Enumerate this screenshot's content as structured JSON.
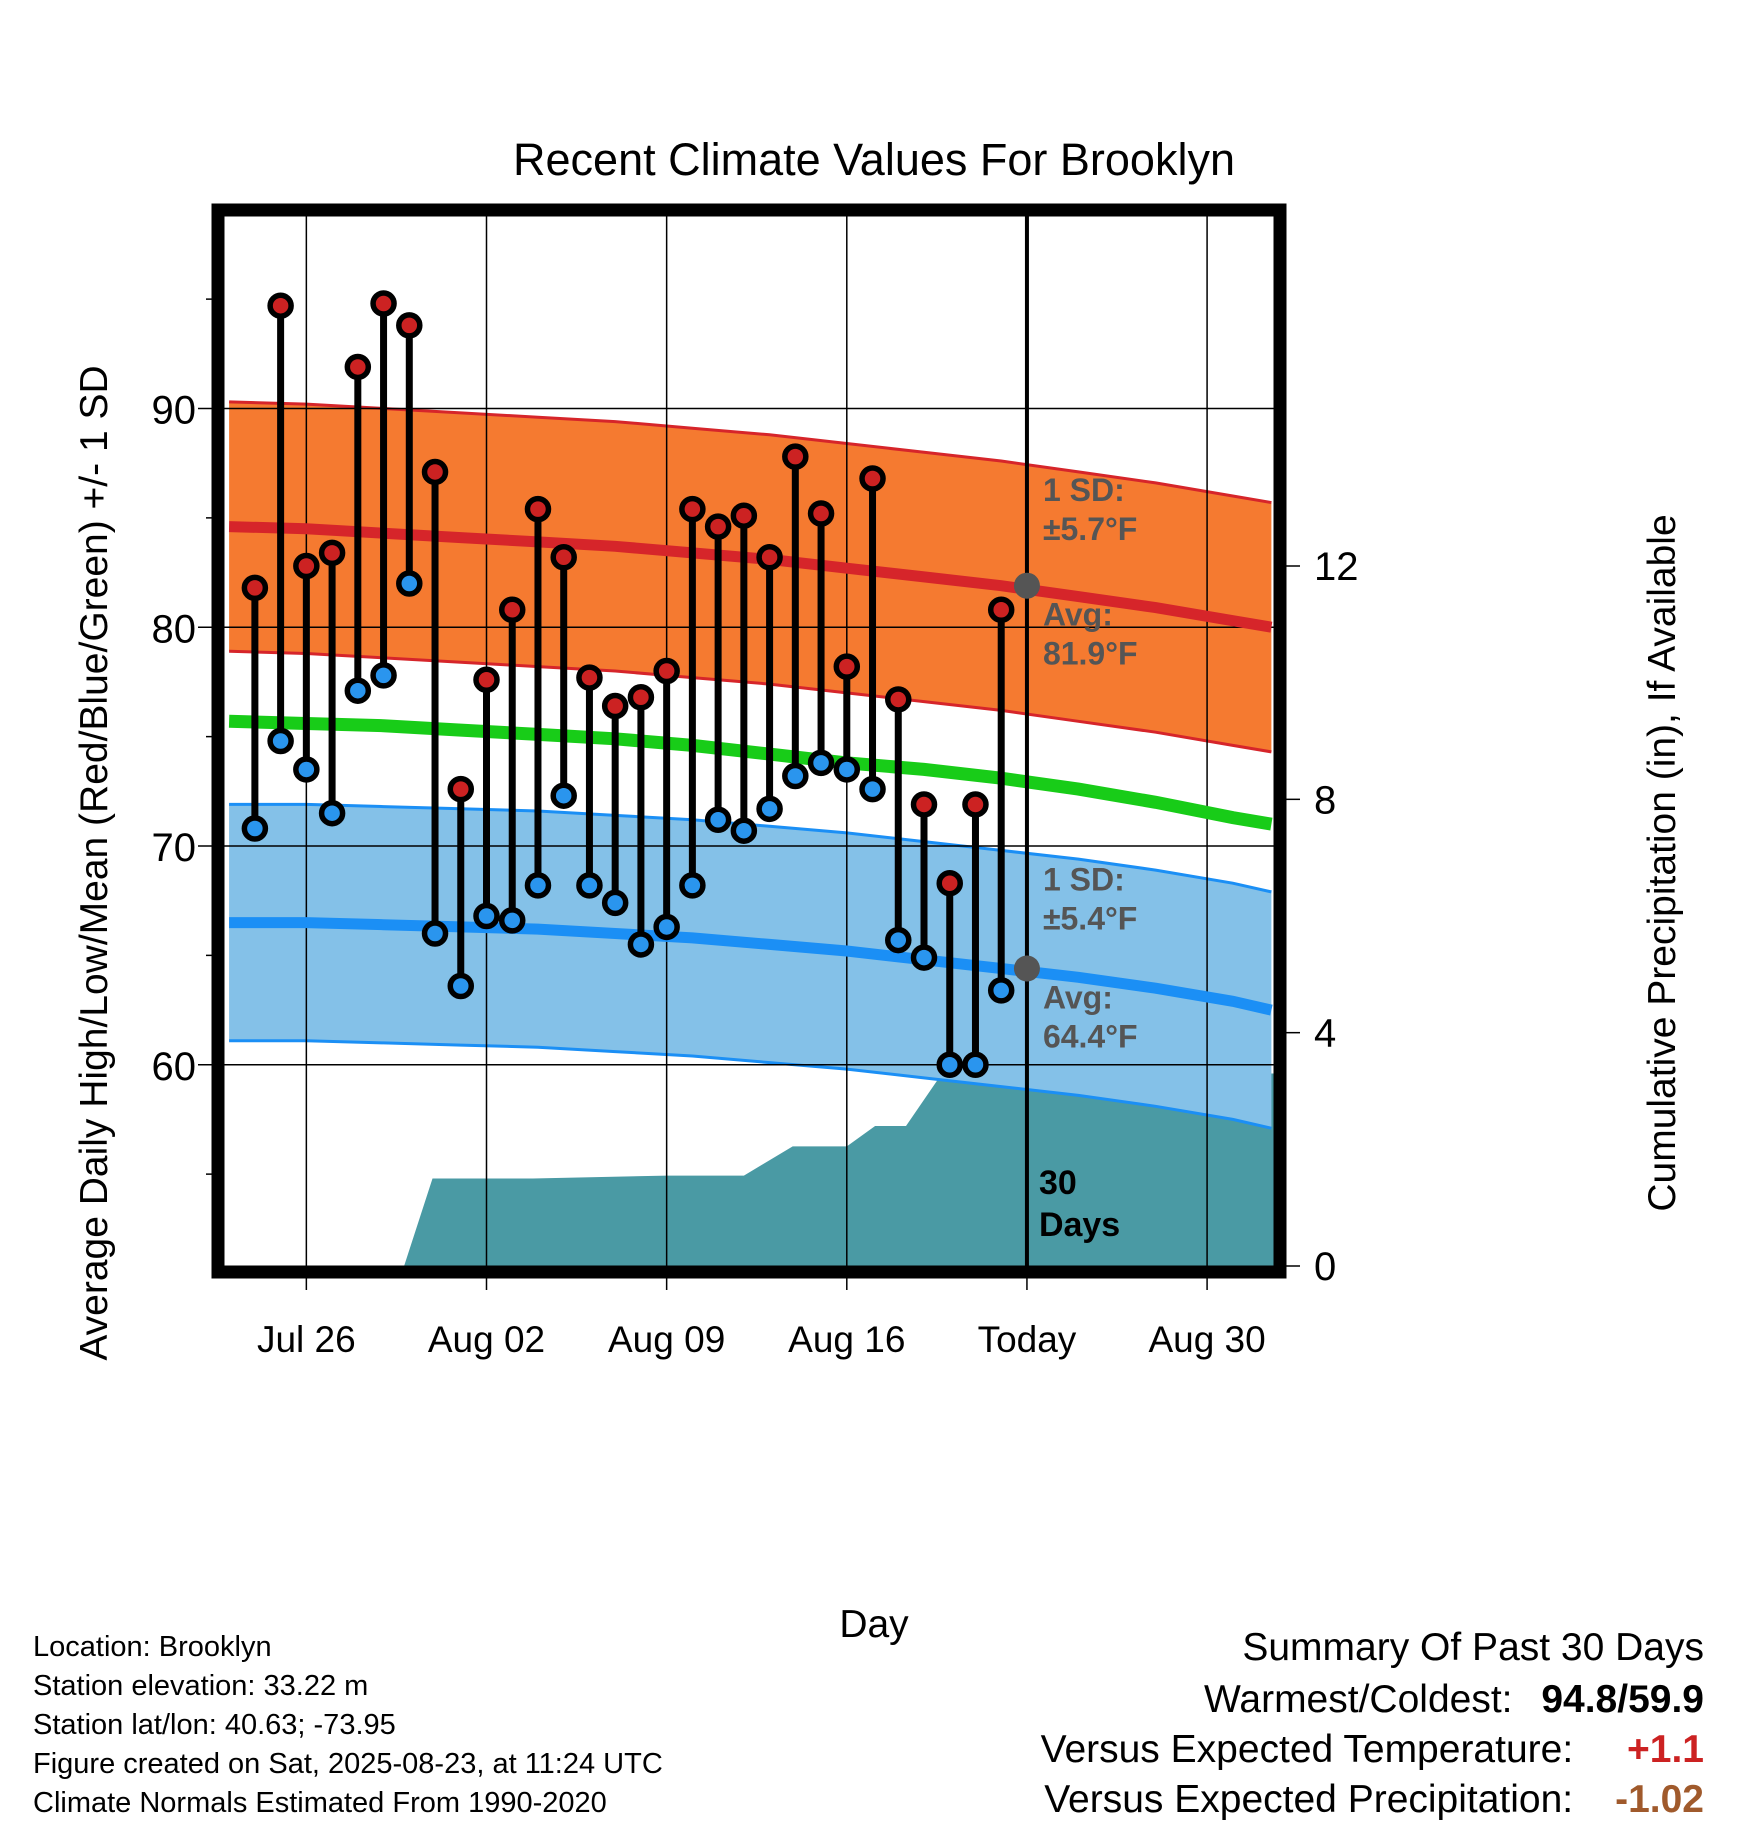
{
  "chart_data": {
    "type": "line",
    "title": "Recent Climate Values For Brooklyn",
    "xlabel": "Day",
    "ylabel": "Average Daily High/Low/Mean (Red/Blue/Green) +/- 1 SD",
    "y2label": "Cumulative Precipitation (in), If Available",
    "ylim": [
      50.8,
      98.8
    ],
    "y2lim": [
      0,
      18
    ],
    "xlim": [
      -3.2,
      37.6
    ],
    "x_tick_labels": [
      "Jul 26",
      "Aug 02",
      "Aug 09",
      "Aug 16",
      "Today",
      "Aug 30"
    ],
    "x_tick_days": [
      0,
      7,
      14,
      21,
      28,
      35
    ],
    "y_ticks": [
      60,
      70,
      80,
      90
    ],
    "y2_ticks": [
      0,
      4,
      8,
      12
    ],
    "grid": true,
    "today_day": 28,
    "today_label_lines": [
      "30",
      "Days"
    ],
    "observed": {
      "days": [
        -2,
        -1,
        0,
        1,
        2,
        3,
        4,
        5,
        6,
        7,
        8,
        9,
        10,
        11,
        12,
        13,
        14,
        15,
        16,
        17,
        18,
        19,
        20,
        21,
        22,
        23,
        24,
        25,
        26,
        27
      ],
      "high": [
        81.8,
        94.7,
        82.8,
        83.4,
        91.9,
        94.8,
        93.8,
        87.1,
        72.6,
        77.6,
        80.8,
        85.4,
        83.2,
        77.7,
        76.4,
        76.8,
        78.0,
        85.4,
        84.6,
        85.1,
        83.2,
        87.8,
        85.2,
        78.2,
        86.8,
        76.7,
        71.9,
        68.3,
        71.9,
        80.8
      ],
      "low": [
        70.8,
        74.8,
        73.5,
        71.5,
        77.1,
        77.8,
        82.0,
        66.0,
        63.6,
        66.8,
        66.6,
        68.2,
        72.3,
        68.2,
        67.4,
        65.5,
        66.3,
        68.2,
        71.2,
        70.7,
        71.7,
        73.2,
        73.8,
        73.5,
        72.6,
        65.7,
        64.9,
        60.0,
        60.0,
        63.4
      ]
    },
    "normals": {
      "days": [
        -3,
        0,
        3,
        6,
        9,
        12,
        15,
        18,
        21,
        24,
        27,
        30,
        33,
        36,
        37.5
      ],
      "high_avg": [
        84.6,
        84.5,
        84.3,
        84.1,
        83.9,
        83.7,
        83.4,
        83.1,
        82.7,
        82.3,
        81.9,
        81.4,
        80.9,
        80.3,
        80.0
      ],
      "high_sd": 5.7,
      "low_avg": [
        66.5,
        66.5,
        66.4,
        66.3,
        66.2,
        66.0,
        65.8,
        65.5,
        65.2,
        64.8,
        64.4,
        64.0,
        63.5,
        62.9,
        62.5
      ],
      "low_sd": 5.4,
      "mean_avg": [
        75.7,
        75.6,
        75.5,
        75.3,
        75.1,
        74.9,
        74.6,
        74.2,
        73.8,
        73.5,
        73.1,
        72.6,
        72.0,
        71.3,
        71.0
      ]
    },
    "precip_cumulative": {
      "days": [
        -3,
        3.8,
        4.9,
        8.8,
        14,
        17,
        18.9,
        21,
        22.1,
        23.3,
        24.7,
        25.7,
        37.6
      ],
      "values": [
        0,
        0,
        1.5,
        1.5,
        1.55,
        1.55,
        2.05,
        2.05,
        2.4,
        2.4,
        3.3,
        3.3,
        3.3
      ]
    },
    "annotations": {
      "high_sd": [
        "1 SD:",
        "±5.7°F"
      ],
      "high_avg": [
        "Avg:",
        "81.9°F"
      ],
      "low_sd": [
        "1 SD:",
        "±5.4°F"
      ],
      "low_avg": [
        "Avg:",
        "64.4°F"
      ]
    },
    "colors": {
      "high_band": "#f57a30",
      "high_line": "#d6252a",
      "low_band": "#84c1e8",
      "low_line": "#1b8ff5",
      "mean_line": "#18cc18",
      "precip": "#4a9aa4",
      "high_dot": "#cc2222",
      "low_dot": "#2a95ee",
      "today_dot": "#555555",
      "annotation_text": "#555555"
    }
  },
  "info": {
    "location": "Location: Brooklyn",
    "elevation": "Station elevation: 33.22 m",
    "latlon": "Station lat/lon: 40.63; -73.95",
    "created": "Figure created on Sat, 2025-08-23, at 11:24 UTC",
    "normals": "Climate Normals Estimated From 1990-2020"
  },
  "summary": {
    "title": "Summary Of Past 30 Days",
    "warmest_coldest_label": "Warmest/Coldest:",
    "warmest_value": "94.8",
    "coldest_value": "59.9",
    "vs_temp_label": "Versus Expected Temperature:",
    "vs_temp_value": "+1.1",
    "vs_temp_color": "#cc2222",
    "vs_precip_label": "Versus Expected Precipitation:",
    "vs_precip_value": "-1.02",
    "vs_precip_color": "#a05a2c"
  }
}
